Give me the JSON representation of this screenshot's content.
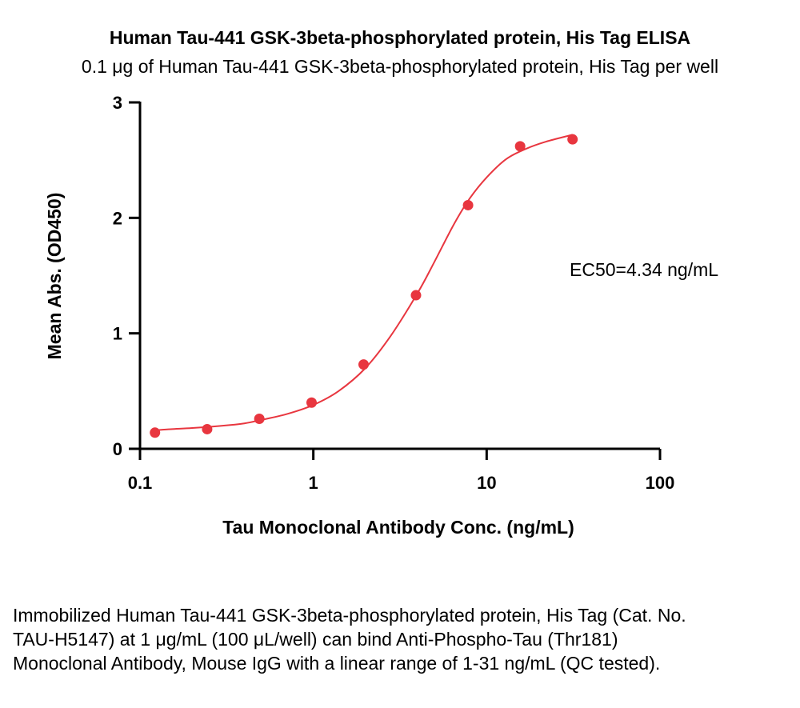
{
  "chart_data": {
    "type": "scatter",
    "title": "Human Tau-441 GSK-3beta-phosphorylated protein, His Tag ELISA",
    "subtitle": "0.1 μg of Human Tau-441 GSK-3beta-phosphorylated protein, His Tag per well",
    "xlabel": "Tau Monoclonal Antibody Conc. (ng/mL)",
    "ylabel": "Mean Abs. (OD450)",
    "x_scale": "log",
    "xlim": [
      0.1,
      100
    ],
    "ylim": [
      0,
      3
    ],
    "x_ticks": [
      "0.1",
      "1",
      "10",
      "100"
    ],
    "y_ticks": [
      "0",
      "1",
      "2",
      "3"
    ],
    "annotation": "EC50=4.34 ng/mL",
    "color": "#e8363f",
    "series": [
      {
        "x": [
          0.122,
          0.244,
          0.488,
          0.977,
          1.95,
          3.91,
          7.81,
          15.6,
          31.3
        ],
        "y": [
          0.14,
          0.17,
          0.26,
          0.4,
          0.73,
          1.33,
          2.11,
          2.62,
          2.68
        ]
      }
    ],
    "fit_curve": {
      "x": [
        0.122,
        0.15,
        0.2,
        0.3,
        0.4,
        0.5,
        0.7,
        1.0,
        1.4,
        2.0,
        2.8,
        4.0,
        5.0,
        6.5,
        8.0,
        10,
        13,
        17,
        22,
        31.3
      ],
      "y": [
        0.16,
        0.17,
        0.18,
        0.2,
        0.22,
        0.25,
        0.3,
        0.38,
        0.5,
        0.7,
        0.98,
        1.35,
        1.62,
        1.95,
        2.17,
        2.35,
        2.51,
        2.6,
        2.66,
        2.72
      ]
    }
  },
  "caption": "Immobilized Human Tau-441 GSK-3beta-phosphorylated protein, His Tag (Cat. No. TAU-H5147) at 1 μg/mL (100 μL/well) can bind Anti-Phospho-Tau (Thr181) Monoclonal Antibody, Mouse IgG with a linear range of 1-31 ng/mL (QC tested)."
}
